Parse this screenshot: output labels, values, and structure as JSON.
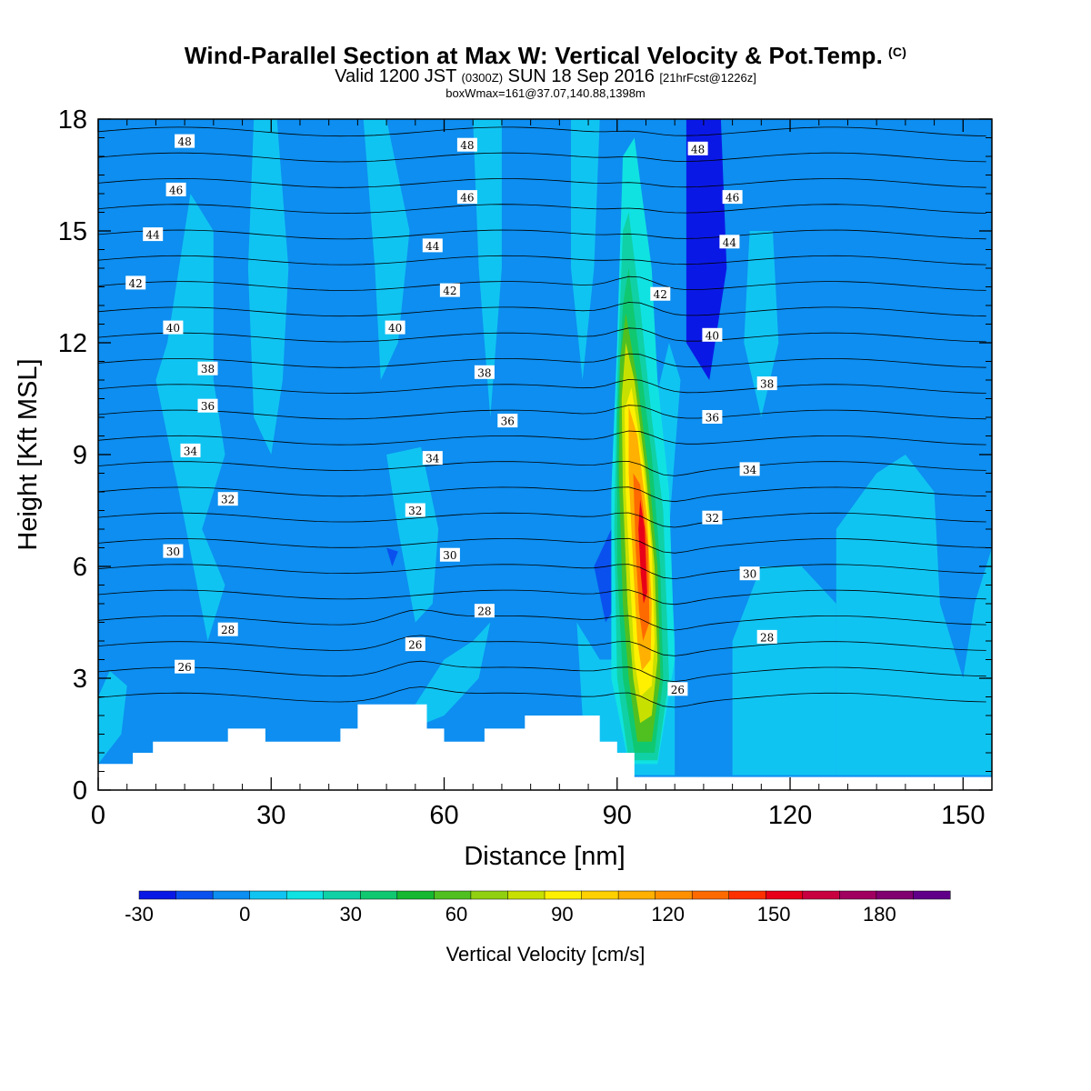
{
  "title": {
    "main": "Wind-Parallel Section at Max W: Vertical Velocity & Pot.Temp.",
    "copyright": "(C)",
    "valid_prefix": "Valid 1200 JST",
    "valid_utc": "(0300Z)",
    "valid_date": "SUN 18 Sep 2016",
    "forecast": "[21hrFcst@1226z]",
    "boxinfo": "boxWmax=161@37.07,140.88,1398m"
  },
  "chart_data": {
    "type": "heatmap",
    "xlabel": "Distance [nm]",
    "ylabel": "Height [Kft MSL]",
    "xlim": [
      0,
      155
    ],
    "ylim": [
      0,
      18
    ],
    "x_ticks": [
      0,
      30,
      60,
      90,
      120,
      150
    ],
    "y_ticks": [
      0,
      3,
      6,
      9,
      12,
      15,
      18
    ],
    "background_value_color": "#0d8ef0",
    "colorbar": {
      "label": "Vertical Velocity [cm/s]",
      "tick_values": [
        -30,
        0,
        30,
        60,
        90,
        120,
        150,
        180
      ],
      "min": -30,
      "max": 200,
      "colors": [
        "#0a18e6",
        "#0a50ee",
        "#0d8ef0",
        "#10c4f2",
        "#10e2e2",
        "#10d0a6",
        "#10c870",
        "#15b830",
        "#50c020",
        "#90d010",
        "#c8e000",
        "#fff000",
        "#ffd000",
        "#ffb000",
        "#ff9000",
        "#ff6a00",
        "#ff3000",
        "#e80018",
        "#c80040",
        "#a00060",
        "#800070",
        "#600088"
      ]
    },
    "vertical_velocity_regions": [
      {
        "level": "light-cyan",
        "color": "#10c4f2",
        "poly": [
          [
            12,
            12
          ],
          [
            16,
            16
          ],
          [
            20,
            15
          ],
          [
            20,
            11
          ],
          [
            22,
            9
          ],
          [
            18,
            7
          ],
          [
            22,
            5.5
          ],
          [
            19,
            4
          ],
          [
            14,
            8
          ],
          [
            10,
            11
          ]
        ]
      },
      {
        "level": "light-cyan",
        "color": "#10c4f2",
        "poly": [
          [
            27,
            18
          ],
          [
            31,
            18
          ],
          [
            33,
            14
          ],
          [
            32,
            11
          ],
          [
            30,
            9
          ],
          [
            27,
            10
          ],
          [
            26,
            14
          ]
        ]
      },
      {
        "level": "light-cyan",
        "color": "#10c4f2",
        "poly": [
          [
            46,
            18
          ],
          [
            50,
            18
          ],
          [
            54,
            15
          ],
          [
            52,
            12
          ],
          [
            49,
            11
          ],
          [
            48,
            14
          ]
        ]
      },
      {
        "level": "light-cyan",
        "color": "#10c4f2",
        "poly": [
          [
            50,
            9
          ],
          [
            56,
            9.2
          ],
          [
            59,
            7
          ],
          [
            58,
            5
          ],
          [
            55,
            4.5
          ],
          [
            52,
            7
          ]
        ]
      },
      {
        "level": "light-cyan",
        "color": "#10c4f2",
        "poly": [
          [
            65,
            18
          ],
          [
            70,
            18
          ],
          [
            70,
            14
          ],
          [
            68,
            10
          ],
          [
            66,
            14
          ]
        ]
      },
      {
        "level": "light-cyan",
        "color": "#10c4f2",
        "poly": [
          [
            82,
            18
          ],
          [
            87,
            18
          ],
          [
            86,
            14
          ],
          [
            84,
            11
          ],
          [
            82,
            14
          ]
        ]
      },
      {
        "level": "light-cyan",
        "color": "#10c4f2",
        "poly": [
          [
            113,
            15
          ],
          [
            117,
            15
          ],
          [
            118,
            12
          ],
          [
            115,
            10
          ],
          [
            112,
            12
          ]
        ]
      },
      {
        "level": "light-cyan",
        "color": "#10c4f2",
        "poly": [
          [
            128,
            0.4
          ],
          [
            155,
            0.4
          ],
          [
            155,
            6.5
          ],
          [
            152,
            5
          ],
          [
            150,
            3
          ],
          [
            146,
            5
          ],
          [
            145,
            8
          ],
          [
            140,
            9
          ],
          [
            135,
            8.5
          ],
          [
            128,
            7
          ]
        ]
      },
      {
        "level": "light-cyan",
        "color": "#10c4f2",
        "poly": [
          [
            110,
            0.4
          ],
          [
            128,
            0.4
          ],
          [
            128,
            5
          ],
          [
            122,
            6
          ],
          [
            115,
            6
          ],
          [
            110,
            4
          ]
        ]
      },
      {
        "level": "light-cyan",
        "color": "#10c4f2",
        "poly": [
          [
            35,
            1.2
          ],
          [
            48,
            1.2
          ],
          [
            55,
            2.3
          ],
          [
            60,
            3.5
          ],
          [
            65,
            4
          ],
          [
            68,
            4.5
          ],
          [
            66,
            3
          ],
          [
            60,
            2
          ],
          [
            52,
            1.5
          ],
          [
            44,
            1.2
          ]
        ]
      },
      {
        "level": "light-cyan",
        "color": "#10c4f2",
        "poly": [
          [
            0,
            0.7
          ],
          [
            4,
            1.5
          ],
          [
            5,
            2.8
          ],
          [
            2,
            3.2
          ],
          [
            0,
            2.5
          ]
        ]
      },
      {
        "level": "light-cyan",
        "color": "#10c4f2",
        "poly": [
          [
            83,
            4.5
          ],
          [
            87,
            3.5
          ],
          [
            90,
            3.5
          ],
          [
            92,
            6
          ],
          [
            96,
            10
          ],
          [
            99,
            12
          ],
          [
            101,
            11
          ],
          [
            99,
            7
          ],
          [
            100,
            4
          ],
          [
            100,
            0.4
          ],
          [
            86,
            0.4
          ],
          [
            84,
            2
          ]
        ]
      },
      {
        "level": "strong-down",
        "color": "#0a18e6",
        "poly": [
          [
            102,
            18
          ],
          [
            108,
            18
          ],
          [
            109,
            14
          ],
          [
            106,
            11
          ],
          [
            102,
            12
          ]
        ]
      },
      {
        "level": "down",
        "color": "#0a50ee",
        "poly": [
          [
            86,
            6
          ],
          [
            89,
            7
          ],
          [
            90,
            5
          ],
          [
            88,
            4.5
          ]
        ]
      },
      {
        "level": "down",
        "color": "#0a50ee",
        "poly": [
          [
            50,
            6.5
          ],
          [
            52,
            6.4
          ],
          [
            51,
            6.0
          ]
        ]
      },
      {
        "level": "weak-up",
        "color": "#10e2e2",
        "poly": [
          [
            92,
            0.7
          ],
          [
            97,
            0.7
          ],
          [
            100,
            3.5
          ],
          [
            99,
            8
          ],
          [
            97,
            11
          ],
          [
            96,
            14
          ],
          [
            93,
            17.5
          ],
          [
            91,
            17
          ],
          [
            90,
            12
          ],
          [
            89,
            8
          ],
          [
            89,
            3
          ]
        ]
      },
      {
        "level": "up-30",
        "color": "#10d0a6",
        "poly": [
          [
            92,
            0.8
          ],
          [
            97,
            0.8
          ],
          [
            99,
            3
          ],
          [
            98,
            7.5
          ],
          [
            96,
            10
          ],
          [
            94,
            13
          ],
          [
            92,
            15.5
          ],
          [
            91,
            15
          ],
          [
            90,
            11
          ],
          [
            89.5,
            7
          ],
          [
            90,
            3
          ]
        ]
      },
      {
        "level": "up-45",
        "color": "#10c870",
        "poly": [
          [
            93,
            1
          ],
          [
            96.5,
            1
          ],
          [
            98,
            3
          ],
          [
            97.5,
            6
          ],
          [
            96,
            9
          ],
          [
            94,
            11.5
          ],
          [
            92,
            14
          ],
          [
            91,
            13
          ],
          [
            90,
            10
          ],
          [
            90,
            6
          ],
          [
            91,
            3
          ]
        ]
      },
      {
        "level": "up-60",
        "color": "#50c020",
        "poly": [
          [
            93.5,
            1.3
          ],
          [
            96,
            1.3
          ],
          [
            97.5,
            3
          ],
          [
            97,
            6
          ],
          [
            95.5,
            8.5
          ],
          [
            93.5,
            11
          ],
          [
            91.5,
            12.8
          ],
          [
            90.5,
            11.5
          ],
          [
            90.3,
            8.5
          ],
          [
            91,
            5
          ],
          [
            92,
            3
          ]
        ]
      },
      {
        "level": "up-75",
        "color": "#c8e000",
        "poly": [
          [
            94,
            1.8
          ],
          [
            96,
            2
          ],
          [
            97,
            3.5
          ],
          [
            96.5,
            6
          ],
          [
            95,
            8.5
          ],
          [
            93,
            11
          ],
          [
            91.5,
            12
          ],
          [
            90.8,
            10.5
          ],
          [
            91,
            8
          ],
          [
            91.8,
            5
          ],
          [
            92.8,
            3
          ]
        ]
      },
      {
        "level": "up-90",
        "color": "#fff000",
        "poly": [
          [
            94,
            2.5
          ],
          [
            96,
            2.8
          ],
          [
            96.5,
            4
          ],
          [
            96,
            6.5
          ],
          [
            94.5,
            8.8
          ],
          [
            92.5,
            10.8
          ],
          [
            91.3,
            10.2
          ],
          [
            91.5,
            8
          ],
          [
            92.3,
            5.5
          ],
          [
            93,
            3.5
          ]
        ]
      },
      {
        "level": "up-105",
        "color": "#ffb000",
        "poly": [
          [
            94.3,
            3.2
          ],
          [
            95.8,
            3.5
          ],
          [
            96,
            5
          ],
          [
            95.2,
            7.3
          ],
          [
            93.5,
            9.5
          ],
          [
            92,
            10.3
          ],
          [
            92,
            8.5
          ],
          [
            92.8,
            6
          ],
          [
            93.5,
            4
          ]
        ]
      },
      {
        "level": "up-135",
        "color": "#ff6a00",
        "poly": [
          [
            94.5,
            4
          ],
          [
            95.6,
            4.5
          ],
          [
            95.4,
            6.5
          ],
          [
            94,
            8.2
          ],
          [
            92.8,
            8.5
          ],
          [
            93.2,
            6.5
          ],
          [
            93.8,
            4.8
          ]
        ]
      },
      {
        "level": "up-160",
        "color": "#e80018",
        "poly": [
          [
            94.6,
            5
          ],
          [
            95.2,
            5.3
          ],
          [
            94.8,
            7
          ],
          [
            94,
            7.8
          ],
          [
            93.7,
            7
          ],
          [
            94.1,
            5.8
          ]
        ]
      }
    ],
    "terrain": [
      [
        0,
        0
      ],
      [
        0,
        0.7
      ],
      [
        6,
        0.7
      ],
      [
        6,
        1.0
      ],
      [
        9.5,
        1.0
      ],
      [
        9.5,
        1.3
      ],
      [
        22.5,
        1.3
      ],
      [
        22.5,
        1.65
      ],
      [
        29,
        1.65
      ],
      [
        29,
        1.3
      ],
      [
        42,
        1.3
      ],
      [
        42,
        1.65
      ],
      [
        45,
        1.65
      ],
      [
        45,
        2.3
      ],
      [
        57,
        2.3
      ],
      [
        57,
        1.65
      ],
      [
        60,
        1.65
      ],
      [
        60,
        1.3
      ],
      [
        67,
        1.3
      ],
      [
        67,
        1.65
      ],
      [
        74,
        1.65
      ],
      [
        74,
        2.0
      ],
      [
        87,
        2.0
      ],
      [
        87,
        1.3
      ],
      [
        90,
        1.3
      ],
      [
        90,
        1.0
      ],
      [
        93,
        1.0
      ],
      [
        93,
        0.35
      ],
      [
        155,
        0.35
      ],
      [
        155,
        0
      ]
    ],
    "potential_temperature_contour_labels": [
      {
        "value": "48",
        "x": 15,
        "y": 17.4
      },
      {
        "value": "48",
        "x": 64,
        "y": 17.3
      },
      {
        "value": "48",
        "x": 104,
        "y": 17.2
      },
      {
        "value": "46",
        "x": 13.5,
        "y": 16.1
      },
      {
        "value": "46",
        "x": 64,
        "y": 15.9
      },
      {
        "value": "46",
        "x": 110,
        "y": 15.9
      },
      {
        "value": "44",
        "x": 9.5,
        "y": 14.9
      },
      {
        "value": "44",
        "x": 58,
        "y": 14.6
      },
      {
        "value": "44",
        "x": 109.5,
        "y": 14.7
      },
      {
        "value": "42",
        "x": 6.5,
        "y": 13.6
      },
      {
        "value": "42",
        "x": 61,
        "y": 13.4
      },
      {
        "value": "42",
        "x": 97.5,
        "y": 13.3
      },
      {
        "value": "40",
        "x": 13,
        "y": 12.4
      },
      {
        "value": "40",
        "x": 51.5,
        "y": 12.4
      },
      {
        "value": "40",
        "x": 106.5,
        "y": 12.2
      },
      {
        "value": "38",
        "x": 19,
        "y": 11.3
      },
      {
        "value": "38",
        "x": 67,
        "y": 11.2
      },
      {
        "value": "38",
        "x": 116,
        "y": 10.9
      },
      {
        "value": "36",
        "x": 19,
        "y": 10.3
      },
      {
        "value": "36",
        "x": 71,
        "y": 9.9
      },
      {
        "value": "36",
        "x": 106.5,
        "y": 10.0
      },
      {
        "value": "34",
        "x": 16,
        "y": 9.1
      },
      {
        "value": "34",
        "x": 58,
        "y": 8.9
      },
      {
        "value": "34",
        "x": 113,
        "y": 8.6
      },
      {
        "value": "32",
        "x": 22.5,
        "y": 7.8
      },
      {
        "value": "32",
        "x": 55,
        "y": 7.5
      },
      {
        "value": "32",
        "x": 106.5,
        "y": 7.3
      },
      {
        "value": "30",
        "x": 13,
        "y": 6.4
      },
      {
        "value": "30",
        "x": 61,
        "y": 6.3
      },
      {
        "value": "30",
        "x": 113,
        "y": 5.8
      },
      {
        "value": "28",
        "x": 22.5,
        "y": 4.3
      },
      {
        "value": "28",
        "x": 67,
        "y": 4.8
      },
      {
        "value": "28",
        "x": 116,
        "y": 4.1
      },
      {
        "value": "26",
        "x": 15,
        "y": 3.3
      },
      {
        "value": "26",
        "x": 55,
        "y": 3.9
      },
      {
        "value": "26",
        "x": 100.5,
        "y": 2.7
      }
    ],
    "grid": false,
    "legend": "bottom-colorbar"
  }
}
